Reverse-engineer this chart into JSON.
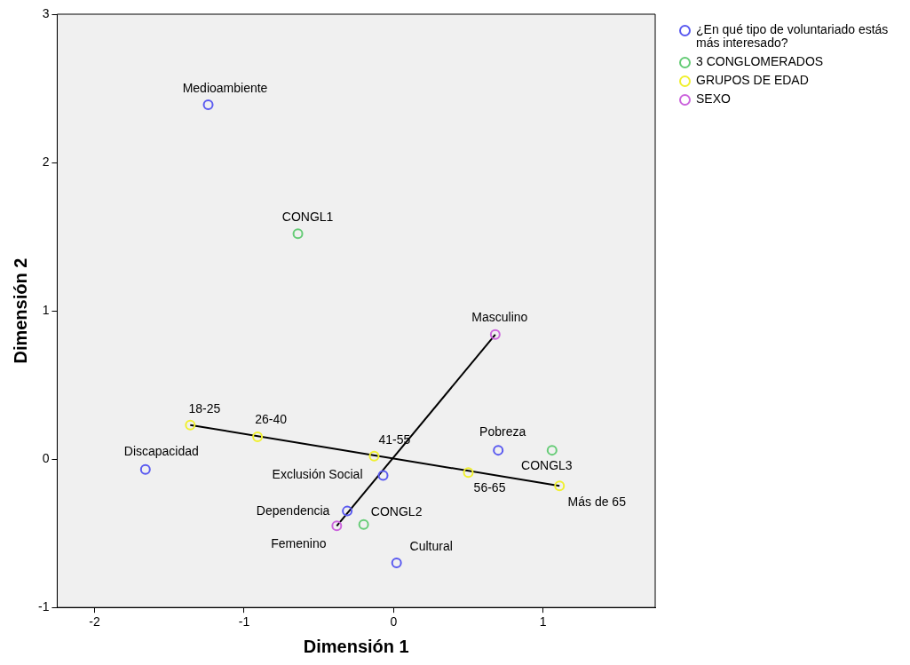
{
  "chart_data": {
    "type": "scatter",
    "xlabel": "Dimensión 1",
    "ylabel": "Dimensión 2",
    "xlim": [
      -2.25,
      1.75
    ],
    "xticks": [
      -2,
      -1,
      0,
      1
    ],
    "ylim": [
      -1,
      3
    ],
    "yticks": [
      -1,
      0,
      1,
      2,
      3
    ],
    "legend": "top right",
    "marker": "circle",
    "series": [
      {
        "name": "¿En qué tipo de voluntariado estás más interesado?",
        "color": "#5a5af0",
        "x": [
          -1.24,
          0.7,
          -1.66,
          -0.07,
          -0.31,
          0.02
        ],
        "values": [
          2.39,
          0.06,
          -0.07,
          -0.11,
          -0.35,
          -0.7
        ]
      },
      {
        "name": "3 CONGLOMERADOS",
        "color": "#66cc77",
        "x": [
          -0.64,
          1.06,
          -0.2
        ],
        "values": [
          1.52,
          0.06,
          -0.44
        ]
      },
      {
        "name": "GRUPOS DE EDAD",
        "color": "#f0f030",
        "x": [
          -1.36,
          -0.91,
          -0.13,
          0.5,
          1.11
        ],
        "values": [
          0.23,
          0.15,
          0.02,
          -0.09,
          -0.18
        ]
      },
      {
        "name": "SEXO",
        "color": "#cc66dd",
        "x": [
          0.68,
          -0.38
        ],
        "values": [
          0.84,
          -0.45
        ]
      },
      {
        "type": "line",
        "marker": "none",
        "color": "#000000",
        "x": [
          -1.36,
          1.11
        ],
        "values": [
          0.23,
          -0.18
        ]
      },
      {
        "type": "line",
        "marker": "none",
        "color": "#000000",
        "x": [
          -0.38,
          0.68
        ],
        "values": [
          -0.45,
          0.84
        ]
      }
    ],
    "annotations": [
      {
        "text": "Medioambiente",
        "x": -1.24,
        "y": 2.39
      },
      {
        "text": "CONGL1",
        "x": -0.64,
        "y": 1.52
      },
      {
        "text": "Masculino",
        "x": 0.68,
        "y": 0.84
      },
      {
        "text": "18-25",
        "x": -1.36,
        "y": 0.23
      },
      {
        "text": "26-40",
        "x": -0.91,
        "y": 0.15
      },
      {
        "text": "41-55",
        "x": -0.13,
        "y": 0.02
      },
      {
        "text": "Pobreza",
        "x": 0.7,
        "y": 0.06
      },
      {
        "text": "CONGL3",
        "x": 1.06,
        "y": 0.06
      },
      {
        "text": "Discapacidad",
        "x": -1.66,
        "y": -0.07
      },
      {
        "text": "Exclusión Social",
        "x": -0.07,
        "y": -0.11
      },
      {
        "text": "56-65",
        "x": 0.5,
        "y": -0.09
      },
      {
        "text": "Más de 65",
        "x": 1.11,
        "y": -0.18
      },
      {
        "text": "Dependencia",
        "x": -0.31,
        "y": -0.35
      },
      {
        "text": "CONGL2",
        "x": -0.2,
        "y": -0.44
      },
      {
        "text": "Femenino",
        "x": -0.38,
        "y": -0.45
      },
      {
        "text": "Cultural",
        "x": 0.02,
        "y": -0.7
      }
    ]
  }
}
